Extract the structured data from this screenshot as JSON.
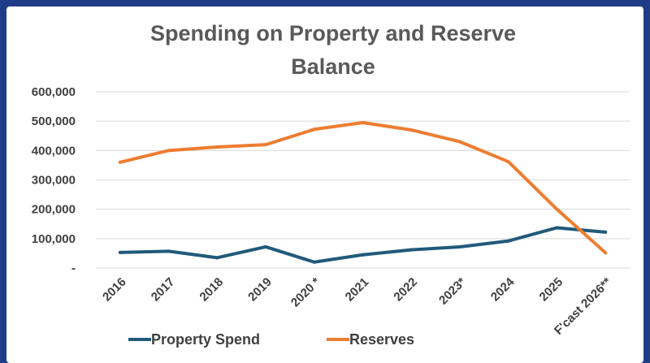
{
  "chart_data": {
    "type": "line",
    "title_lines": [
      "Spending on Property and Reserve",
      "Balance"
    ],
    "categories": [
      "2016",
      "2017",
      "2018",
      "2019",
      "2020 *",
      "2021",
      "2022",
      "2023*",
      "2024",
      "2025",
      "F'cast 2026**"
    ],
    "series": [
      {
        "name": "Property Spend",
        "color": "#215a7a",
        "values": [
          53000,
          57000,
          35000,
          72000,
          20000,
          45000,
          62000,
          72000,
          92000,
          137000,
          122000
        ]
      },
      {
        "name": "Reserves",
        "color": "#ed7d31",
        "values": [
          360000,
          400000,
          412000,
          420000,
          472000,
          495000,
          470000,
          430000,
          362000,
          200000,
          52000
        ]
      }
    ],
    "ylim": [
      0,
      600000
    ],
    "y_ticks": [
      0,
      100000,
      200000,
      300000,
      400000,
      500000,
      600000
    ],
    "y_tick_labels": [
      "-",
      "100,000",
      "200,000",
      "300,000",
      "400,000",
      "500,000",
      "600,000"
    ],
    "grid": true,
    "legend_position": "bottom"
  }
}
